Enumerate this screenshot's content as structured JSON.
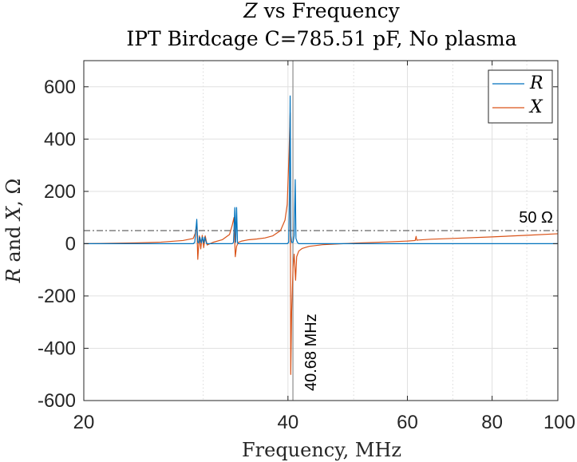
{
  "chart_data": {
    "type": "line",
    "title_var": "Z",
    "title_rest": " vs Frequency",
    "subtitle": "IPT Birdcage C=785.51 pF, No plasma",
    "xlabel": "Frequency, MHz",
    "ylabel_r": "R",
    "ylabel_and": " and ",
    "ylabel_x": "X",
    "ylabel_unit": ", Ω",
    "xscale": "log",
    "xlim": [
      20,
      100
    ],
    "ylim": [
      -600,
      700
    ],
    "xticks": [
      20,
      40,
      60,
      80,
      100
    ],
    "xtick_labels": [
      "20",
      "40",
      "60",
      "80",
      "100"
    ],
    "xminor_gridlines": [
      30,
      50,
      70,
      90
    ],
    "yticks": [
      -600,
      -400,
      -200,
      0,
      200,
      400,
      600
    ],
    "ytick_labels": [
      "-600",
      "-400",
      "-200",
      "0",
      "200",
      "400",
      "600"
    ],
    "grid": true,
    "legend_position": "top-right",
    "series": [
      {
        "name": "R",
        "color": "#0072BD",
        "x": [
          20,
          29.0,
          29.15,
          29.35,
          29.45,
          29.55,
          29.65,
          29.8,
          29.92,
          30.05,
          30.15,
          30.35,
          33.1,
          33.25,
          33.4,
          33.5,
          33.6,
          33.7,
          33.8,
          39.9,
          40.1,
          40.2,
          40.3,
          40.4,
          40.5,
          40.7,
          40.85,
          41.0,
          41.1,
          41.3,
          41.5,
          100
        ],
        "y": [
          0,
          0,
          5,
          93,
          5,
          3,
          25,
          3,
          25,
          3,
          25,
          0,
          0,
          5,
          138,
          5,
          138,
          5,
          0,
          0,
          5,
          180,
          565,
          30,
          5,
          5,
          30,
          245,
          20,
          5,
          0,
          0
        ]
      },
      {
        "name": "X",
        "color": "#D95319",
        "x": [
          20,
          24,
          26,
          28,
          29.0,
          29.2,
          29.35,
          29.45,
          29.6,
          29.75,
          29.9,
          30.05,
          30.2,
          30.4,
          31.0,
          32.0,
          32.8,
          33.1,
          33.3,
          33.45,
          33.6,
          33.8,
          34.2,
          35.0,
          36.0,
          37.0,
          38.0,
          39.0,
          39.6,
          39.9,
          40.15,
          40.3,
          40.38,
          40.5,
          40.7,
          40.85,
          41.05,
          41.2,
          41.5,
          42.0,
          43.0,
          45.0,
          50.0,
          55.0,
          60.0,
          61.6,
          61.8,
          61.95,
          62.2,
          65.0,
          70.0,
          80.0,
          90.0,
          100.0
        ],
        "y": [
          0,
          3,
          6,
          12,
          20,
          40,
          75,
          -60,
          30,
          -20,
          32,
          -15,
          30,
          -5,
          5,
          15,
          35,
          70,
          100,
          -50,
          -10,
          5,
          10,
          15,
          18,
          22,
          30,
          50,
          90,
          150,
          350,
          500,
          -500,
          -260,
          -90,
          -40,
          -140,
          -50,
          -28,
          -18,
          -10,
          -4,
          2,
          6,
          10,
          12,
          28,
          13,
          14,
          17,
          20,
          26,
          32,
          38
        ]
      }
    ],
    "reference_line": {
      "value": 50,
      "label": "50 Ω",
      "style": "dash-dot",
      "color": "#666666"
    },
    "marker_line": {
      "value": 40.68,
      "label": "40.68 MHz",
      "color": "#8c8c8c"
    }
  }
}
